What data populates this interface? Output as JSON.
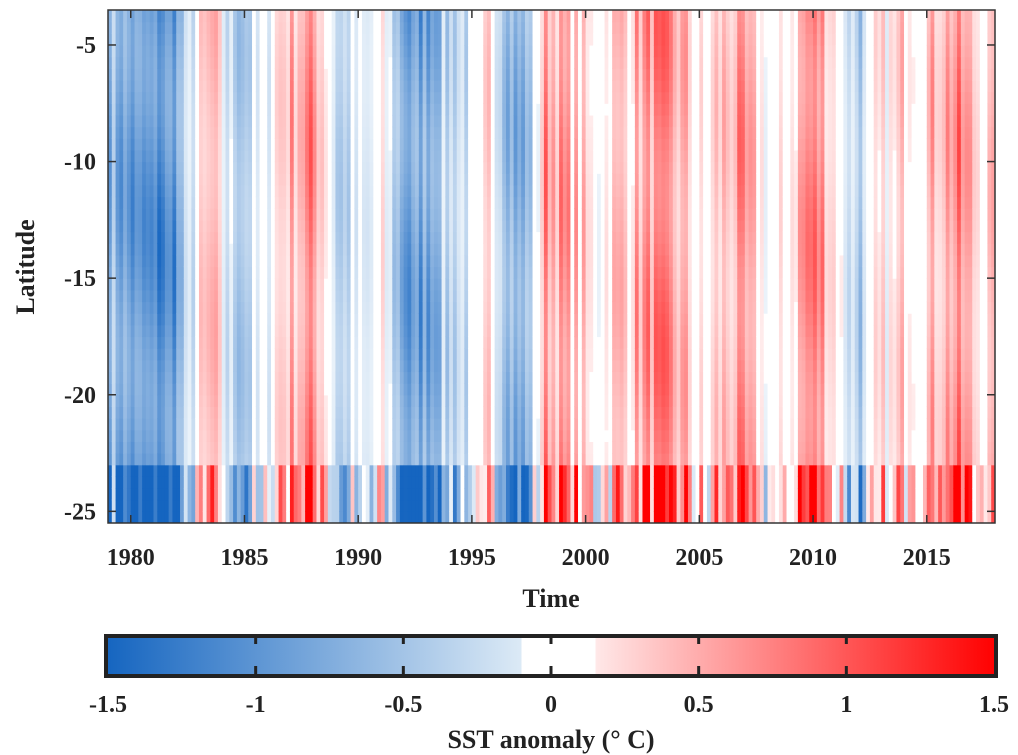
{
  "chart_data": {
    "type": "heatmap",
    "xlabel": "Time",
    "ylabel": "Latitude",
    "xlim": [
      1979,
      2018
    ],
    "ylim": [
      -25.5,
      -3.5
    ],
    "xticks": [
      1980,
      1985,
      1990,
      1995,
      2000,
      2005,
      2010,
      2015
    ],
    "yticks": [
      -5,
      -10,
      -15,
      -20,
      -25
    ],
    "colorbar": {
      "label": "SST anomaly (° C)",
      "range": [
        -1.5,
        1.5
      ],
      "ticks": [
        -1.5,
        -1,
        -0.5,
        0,
        0.5,
        1,
        1.5
      ],
      "white_band": [
        -0.1,
        0.15
      ],
      "cmap": [
        "#1565c0",
        "#ffffff",
        "#ff0000"
      ]
    },
    "time_anomaly_profile": [
      {
        "t": 1979.0,
        "v": -0.5
      },
      {
        "t": 1979.5,
        "v": -0.7
      },
      {
        "t": 1980.2,
        "v": -0.9
      },
      {
        "t": 1981.0,
        "v": -1.0
      },
      {
        "t": 1981.8,
        "v": -0.9
      },
      {
        "t": 1982.4,
        "v": -0.5
      },
      {
        "t": 1983.0,
        "v": 0.1
      },
      {
        "t": 1983.6,
        "v": 0.4
      },
      {
        "t": 1984.3,
        "v": -0.3
      },
      {
        "t": 1985.0,
        "v": -0.4
      },
      {
        "t": 1985.8,
        "v": -0.2
      },
      {
        "t": 1986.5,
        "v": 0.3
      },
      {
        "t": 1987.4,
        "v": 0.5
      },
      {
        "t": 1988.0,
        "v": 0.6
      },
      {
        "t": 1988.6,
        "v": 0.3
      },
      {
        "t": 1989.2,
        "v": -0.5
      },
      {
        "t": 1989.8,
        "v": -0.2
      },
      {
        "t": 1990.4,
        "v": -0.3
      },
      {
        "t": 1991.0,
        "v": 0.1
      },
      {
        "t": 1991.6,
        "v": -0.4
      },
      {
        "t": 1992.3,
        "v": -0.9
      },
      {
        "t": 1993.0,
        "v": -0.7
      },
      {
        "t": 1993.8,
        "v": -0.4
      },
      {
        "t": 1994.5,
        "v": -0.2
      },
      {
        "t": 1995.2,
        "v": -0.3
      },
      {
        "t": 1995.8,
        "v": 0.3
      },
      {
        "t": 1996.5,
        "v": -0.4
      },
      {
        "t": 1997.2,
        "v": -0.8
      },
      {
        "t": 1997.8,
        "v": -0.2
      },
      {
        "t": 1998.2,
        "v": 0.6
      },
      {
        "t": 1999.0,
        "v": 0.5
      },
      {
        "t": 1999.8,
        "v": 0.3
      },
      {
        "t": 2000.5,
        "v": 0.0
      },
      {
        "t": 2001.2,
        "v": 0.3
      },
      {
        "t": 2002.0,
        "v": 0.4
      },
      {
        "t": 2003.0,
        "v": 0.6
      },
      {
        "t": 2003.8,
        "v": 0.5
      },
      {
        "t": 2004.6,
        "v": 0.3
      },
      {
        "t": 2005.2,
        "v": 0.0
      },
      {
        "t": 2005.8,
        "v": 0.3
      },
      {
        "t": 2006.8,
        "v": 0.5
      },
      {
        "t": 2007.6,
        "v": 0.2
      },
      {
        "t": 2008.3,
        "v": -0.1
      },
      {
        "t": 2009.0,
        "v": 0.2
      },
      {
        "t": 2009.8,
        "v": 0.7
      },
      {
        "t": 2010.4,
        "v": 0.6
      },
      {
        "t": 2011.0,
        "v": 0.2
      },
      {
        "t": 2011.6,
        "v": -0.2
      },
      {
        "t": 2012.2,
        "v": -0.4
      },
      {
        "t": 2012.8,
        "v": 0.1
      },
      {
        "t": 2013.5,
        "v": 0.1
      },
      {
        "t": 2014.3,
        "v": 0.4
      },
      {
        "t": 2015.0,
        "v": 0.3
      },
      {
        "t": 2015.7,
        "v": 0.5
      },
      {
        "t": 2016.4,
        "v": 0.6
      },
      {
        "t": 2017.2,
        "v": 0.3
      },
      {
        "t": 2018.0,
        "v": 0.2
      }
    ]
  }
}
